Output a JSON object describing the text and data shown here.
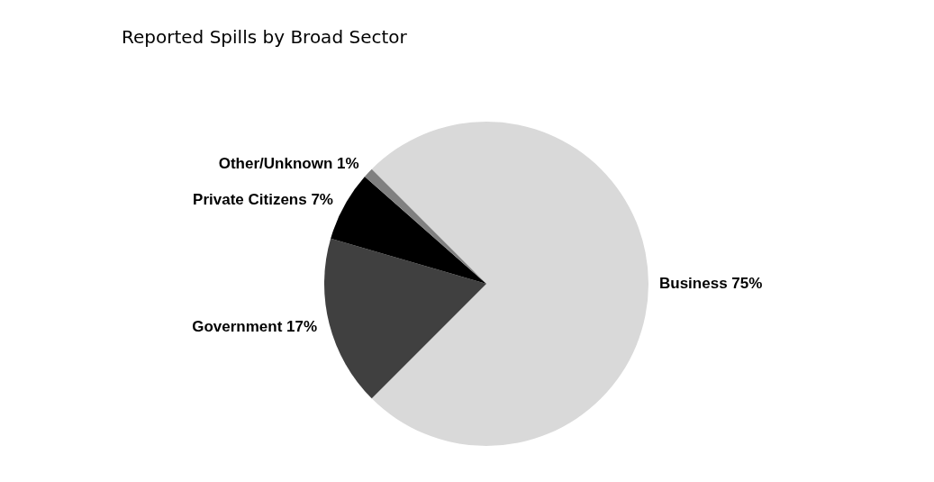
{
  "chart_data": {
    "type": "pie",
    "title": "Reported Spills by Broad Sector",
    "categories": [
      "Business",
      "Government",
      "Private Citizens",
      "Other/Unknown"
    ],
    "values": [
      75,
      17,
      7,
      1
    ],
    "value_labels": [
      "75%",
      "17%",
      "7%",
      "1%"
    ],
    "colors": [
      "#d9d9d9",
      "#404040",
      "#000000",
      "#808080"
    ],
    "legend": false
  }
}
